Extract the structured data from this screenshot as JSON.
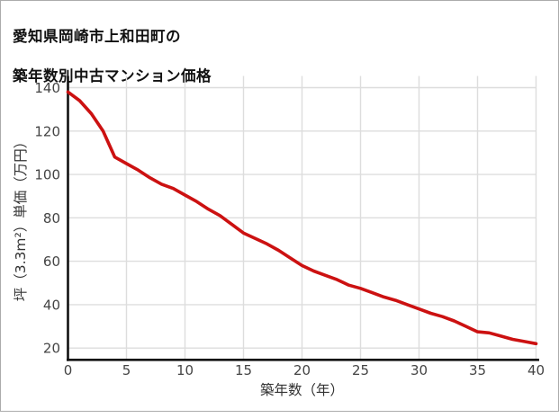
{
  "title": {
    "line1": "愛知県岡崎市上和田町の",
    "line2": "築年数別中古マンション価格"
  },
  "chart_data": {
    "type": "line",
    "title": "愛知県岡崎市上和田町の築年数別中古マンション価格",
    "xlabel": "築年数（年）",
    "ylabel": "坪（3.3m²）単価（万円）",
    "x": [
      0,
      1,
      2,
      3,
      4,
      5,
      6,
      7,
      8,
      9,
      10,
      11,
      12,
      13,
      14,
      15,
      16,
      17,
      18,
      19,
      20,
      21,
      22,
      23,
      24,
      25,
      26,
      27,
      28,
      29,
      30,
      31,
      32,
      33,
      34,
      35,
      36,
      37,
      38,
      39,
      40
    ],
    "values": [
      138,
      134,
      128,
      120,
      108,
      105,
      102,
      98.5,
      95.5,
      93.5,
      90.5,
      87.5,
      84,
      81,
      77,
      73,
      70.5,
      68,
      65,
      61.5,
      58,
      55.5,
      53.5,
      51.5,
      49,
      47.5,
      45.5,
      43.5,
      42,
      40,
      38,
      36,
      34.5,
      32.5,
      30,
      27.5,
      27,
      25.5,
      24,
      23,
      22
    ],
    "xticks": [
      0,
      5,
      10,
      15,
      20,
      25,
      30,
      35,
      40
    ],
    "yticks": [
      20,
      40,
      60,
      80,
      100,
      120,
      140
    ],
    "xlim": [
      0,
      40.3
    ],
    "ylim": [
      14.5,
      145.5
    ],
    "grid": true,
    "legend": false
  },
  "colors": {
    "line": "#cc1111",
    "grid": "#dddddd",
    "axis": "#111111",
    "tick_text": "#444444",
    "axis_title_text": "#333333",
    "title_text": "#111111",
    "border": "#ababab",
    "background": "#ffffff"
  }
}
